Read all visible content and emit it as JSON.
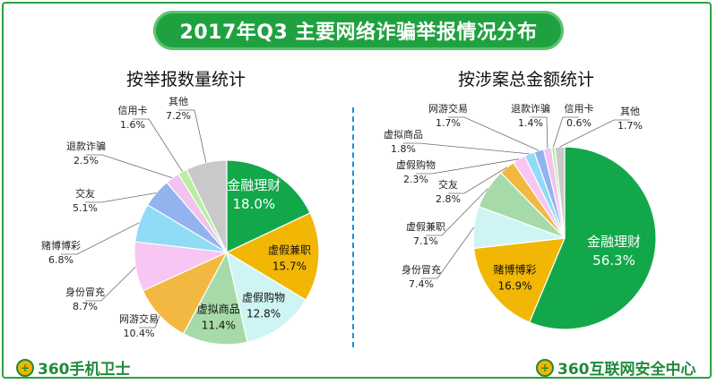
{
  "title": "2017年Q3 主要网络诈骗举报情况分布",
  "logo_left": "360手机卫士",
  "logo_right": "360互联网安全中心",
  "chart_data": [
    {
      "type": "pie",
      "title": "按举报数量统计",
      "slices": [
        {
          "label": "金融理财",
          "value": 18.0,
          "display": "18.0%",
          "color": "#12a84a"
        },
        {
          "label": "虚假兼职",
          "value": 15.7,
          "display": "15.7%",
          "color": "#f2b705"
        },
        {
          "label": "虚假购物",
          "value": 12.8,
          "display": "12.8%",
          "color": "#cef5f4"
        },
        {
          "label": "虚拟商品",
          "value": 11.4,
          "display": "11.4%",
          "color": "#a6dba9"
        },
        {
          "label": "网游交易",
          "value": 10.4,
          "display": "10.4%",
          "color": "#f3b842"
        },
        {
          "label": "身份冒充",
          "value": 8.7,
          "display": "8.7%",
          "color": "#f7c6f2"
        },
        {
          "label": "赌博博彩",
          "value": 6.8,
          "display": "6.8%",
          "color": "#8fdcf6"
        },
        {
          "label": "交友",
          "value": 5.1,
          "display": "5.1%",
          "color": "#93b3ef"
        },
        {
          "label": "退款诈骗",
          "value": 2.5,
          "display": "2.5%",
          "color": "#f0c4ef"
        },
        {
          "label": "信用卡",
          "value": 1.6,
          "display": "1.6%",
          "color": "#b9ef9f"
        },
        {
          "label": "其他",
          "value": 7.2,
          "display": "7.2%",
          "color": "#c9c9c9"
        }
      ]
    },
    {
      "type": "pie",
      "title": "按涉案总金额统计",
      "slices": [
        {
          "label": "金融理财",
          "value": 56.3,
          "display": "56.3%",
          "color": "#12a84a"
        },
        {
          "label": "赌博博彩",
          "value": 16.9,
          "display": "16.9%",
          "color": "#f2b705"
        },
        {
          "label": "身份冒充",
          "value": 7.4,
          "display": "7.4%",
          "color": "#cef5f4"
        },
        {
          "label": "虚假兼职",
          "value": 7.1,
          "display": "7.1%",
          "color": "#a6dba9"
        },
        {
          "label": "交友",
          "value": 2.8,
          "display": "2.8%",
          "color": "#f3b842"
        },
        {
          "label": "虚假购物",
          "value": 2.3,
          "display": "2.3%",
          "color": "#f7c6f2"
        },
        {
          "label": "虚拟商品",
          "value": 1.8,
          "display": "1.8%",
          "color": "#8fdcf6"
        },
        {
          "label": "网游交易",
          "value": 1.7,
          "display": "1.7%",
          "color": "#93b3ef"
        },
        {
          "label": "退款诈骗",
          "value": 1.4,
          "display": "1.4%",
          "color": "#f0c4ef"
        },
        {
          "label": "信用卡",
          "value": 0.6,
          "display": "0.6%",
          "color": "#b9ef9f"
        },
        {
          "label": "其他",
          "value": 1.7,
          "display": "1.7%",
          "color": "#c9c9c9"
        }
      ]
    }
  ]
}
